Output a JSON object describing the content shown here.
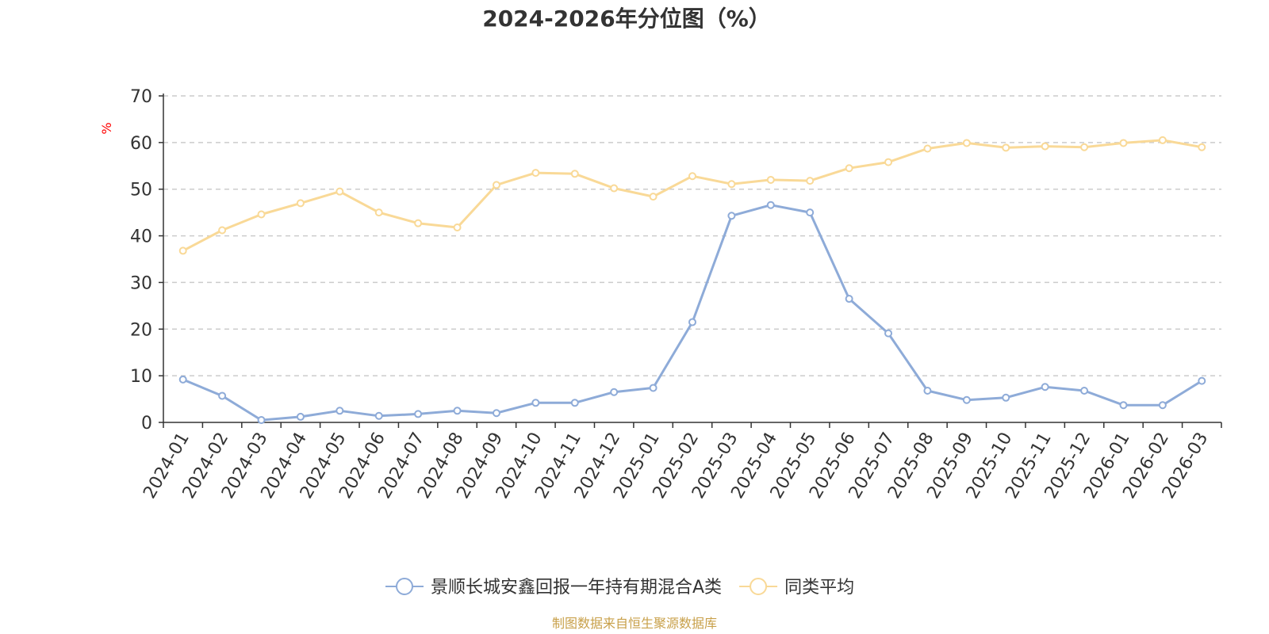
{
  "chart_data": {
    "type": "line",
    "title": "2024-2026年分位图（%）",
    "ylabel": "%",
    "xlabel": "",
    "ylim": [
      0,
      70
    ],
    "yticks": [
      0,
      10,
      20,
      30,
      40,
      50,
      60,
      70
    ],
    "grid": "horizontal dashed",
    "legend_position": "bottom-center",
    "categories": [
      "2024-01",
      "2024-02",
      "2024-03",
      "2024-04",
      "2024-05",
      "2024-06",
      "2024-07",
      "2024-08",
      "2024-09",
      "2024-10",
      "2024-11",
      "2024-12",
      "2025-01",
      "2025-02",
      "2025-03",
      "2025-04",
      "2025-05",
      "2025-06",
      "2025-07",
      "2025-08",
      "2025-09",
      "2025-10",
      "2025-11",
      "2025-12",
      "2026-01",
      "2026-02",
      "2026-03"
    ],
    "series": [
      {
        "name": "景顺长城安鑫回报一年持有期混合A类",
        "color": "#8eabd8",
        "values": [
          9.2,
          5.7,
          0.5,
          1.2,
          2.5,
          1.4,
          1.8,
          2.5,
          2.0,
          4.2,
          4.2,
          6.5,
          7.4,
          21.5,
          44.3,
          46.6,
          45.0,
          26.5,
          19.1,
          6.8,
          4.8,
          5.3,
          7.6,
          6.8,
          3.7,
          3.7,
          8.9
        ]
      },
      {
        "name": "同类平均",
        "color": "#f9d997",
        "values": [
          36.8,
          41.2,
          44.6,
          47.0,
          49.5,
          45.0,
          42.7,
          41.8,
          50.9,
          53.5,
          53.3,
          50.2,
          48.4,
          52.8,
          51.1,
          52.0,
          51.8,
          54.5,
          55.8,
          58.7,
          59.9,
          58.9,
          59.2,
          59.0,
          59.9,
          60.5,
          59.0
        ]
      }
    ]
  },
  "footer": {
    "source": "制图数据来自恒生聚源数据库"
  }
}
